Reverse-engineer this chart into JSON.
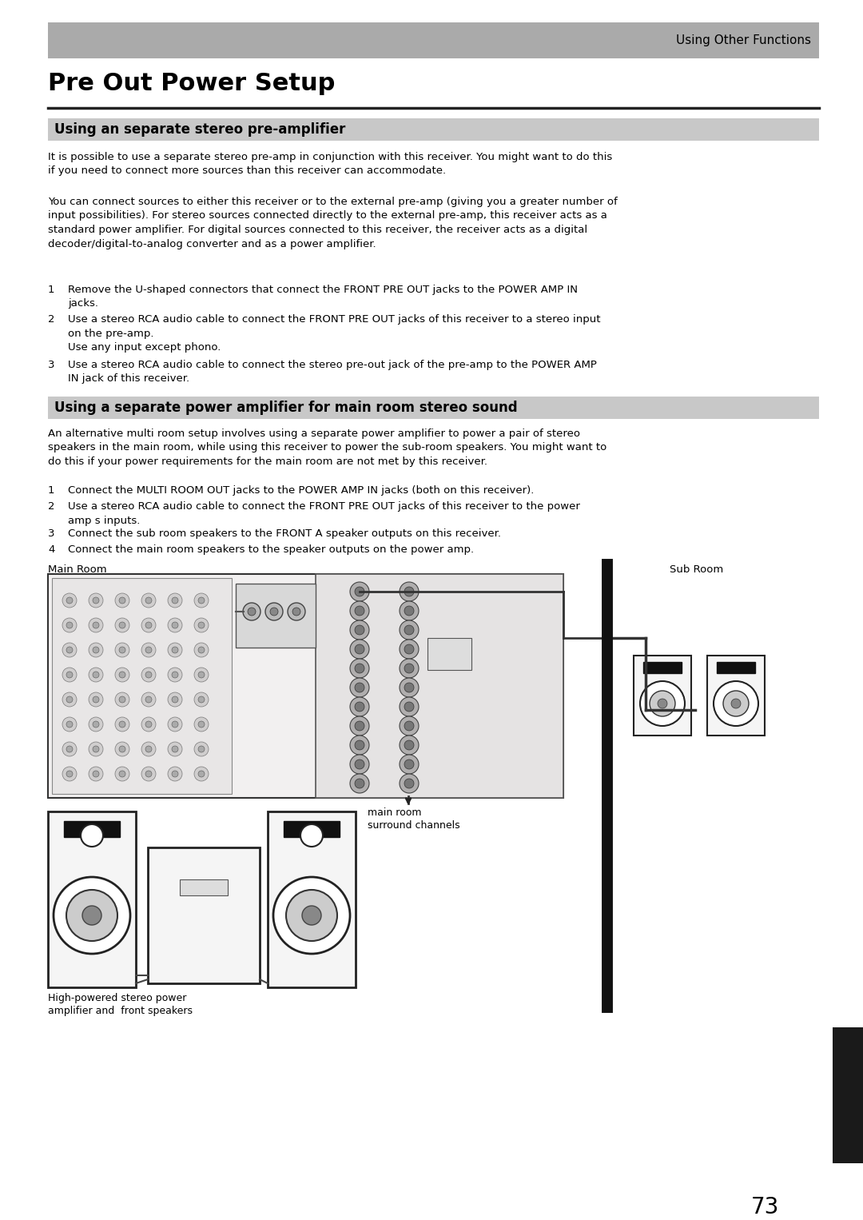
{
  "page_bg": "#ffffff",
  "header_bg": "#aaaaaa",
  "header_text": "Using Other Functions",
  "title": "Pre Out Power Setup",
  "section1_bg": "#c8c8c8",
  "section1_title": "Using an separate stereo pre-amplifier",
  "section1_para1": "It is possible to use a separate stereo pre-amp in conjunction with this receiver. You might want to do this\nif you need to connect more sources than this receiver can accommodate.",
  "section1_para2": "You can connect sources to either this receiver or to the external pre-amp (giving you a greater number of\ninput possibilities). For stereo sources connected directly to the external pre-amp, this receiver acts as a\nstandard power amplifier. For digital sources connected to this receiver, the receiver acts as a digital\ndecoder/digital-to-analog converter and as a power amplifier.",
  "section1_item1_num": "1",
  "section1_item1": "Remove the U-shaped connectors that connect the FRONT PRE OUT jacks to the POWER AMP IN\njacks.",
  "section1_item2_num": "2",
  "section1_item2a": "Use a stereo RCA audio cable to connect the FRONT PRE OUT jacks of this receiver to a stereo input\non the pre-amp.",
  "section1_item2b": "Use any input except phono.",
  "section1_item3_num": "3",
  "section1_item3": "Use a stereo RCA audio cable to connect the stereo pre-out jack of the pre-amp to the POWER AMP\nIN jack of this receiver.",
  "section2_bg": "#c8c8c8",
  "section2_title": "Using a separate power amplifier for main room stereo sound",
  "section2_para1": "An alternative multi room setup involves using a separate power amplifier to power a pair of stereo\nspeakers in the main room, while using this receiver to power the sub-room speakers. You might want to\ndo this if your power requirements for the main room are not met by this receiver.",
  "section2_item1_num": "1",
  "section2_item1": "Connect the MULTI ROOM OUT jacks to the POWER AMP IN jacks (both on this receiver).",
  "section2_item2_num": "2",
  "section2_item2": "Use a stereo RCA audio cable to connect the FRONT PRE OUT jacks of this receiver to the power\namp s inputs.",
  "section2_item3_num": "3",
  "section2_item3": "Connect the sub room speakers to the FRONT A speaker outputs on this receiver.",
  "section2_item4_num": "4",
  "section2_item4": "Connect the main room speakers to the speaker outputs on the power amp.",
  "label_main_room": "Main Room",
  "label_sub_room": "Sub Room",
  "label_surround": "main room\nsurround channels",
  "label_amplifier": "High-powered stereo power\namplifier and  front speakers",
  "page_number": "73"
}
